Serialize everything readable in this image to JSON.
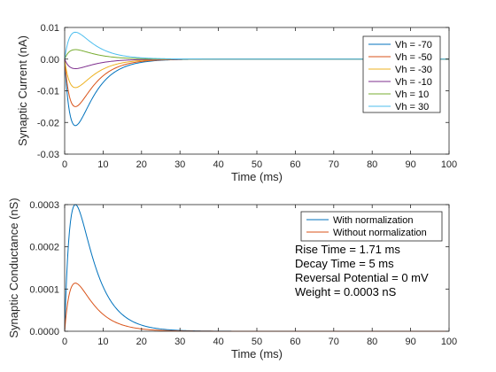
{
  "chart_data": [
    {
      "type": "line",
      "title": "",
      "xlabel": "Time (ms)",
      "ylabel": "Synaptic Current (nA)",
      "xlim": [
        0,
        100
      ],
      "ylim": [
        -0.03,
        0.01
      ],
      "xticks": [
        "0",
        "10",
        "20",
        "30",
        "40",
        "50",
        "60",
        "70",
        "80",
        "90",
        "100"
      ],
      "yticks": [
        "-0.03",
        "-0.02",
        "-0.01",
        "0.00",
        "0.01"
      ],
      "legend_position": "top-right",
      "series": [
        {
          "name": "Vh = -70",
          "color": "#0072BD",
          "peak": -0.021
        },
        {
          "name": "Vh = -50",
          "color": "#D95319",
          "peak": -0.015
        },
        {
          "name": "Vh = -30",
          "color": "#EDB120",
          "peak": -0.009
        },
        {
          "name": "Vh = -10",
          "color": "#7E2F8E",
          "peak": -0.003
        },
        {
          "name": "Vh = 10",
          "color": "#77AC30",
          "peak": 0.003
        },
        {
          "name": "Vh = 30",
          "color": "#4DBEEE",
          "peak": 0.0085
        }
      ]
    },
    {
      "type": "line",
      "title": "",
      "xlabel": "Time (ms)",
      "ylabel": "Synaptic Conductance (nS)",
      "xlim": [
        0,
        100
      ],
      "ylim": [
        0,
        0.0003
      ],
      "xticks": [
        "0",
        "10",
        "20",
        "30",
        "40",
        "50",
        "60",
        "70",
        "80",
        "90",
        "100"
      ],
      "yticks": [
        "0.0000",
        "0.0001",
        "0.0002",
        "0.0003"
      ],
      "legend_position": "top-right",
      "series": [
        {
          "name": "With normalization",
          "color": "#0072BD",
          "peak": 0.0003
        },
        {
          "name": "Without normalization",
          "color": "#D95319",
          "peak": 0.000114
        }
      ],
      "annotations": [
        "Rise Time = 1.71 ms",
        "Decay Time = 5 ms",
        "Reversal Potential = 0 mV",
        "Weight = 0.0003 nS"
      ]
    }
  ]
}
